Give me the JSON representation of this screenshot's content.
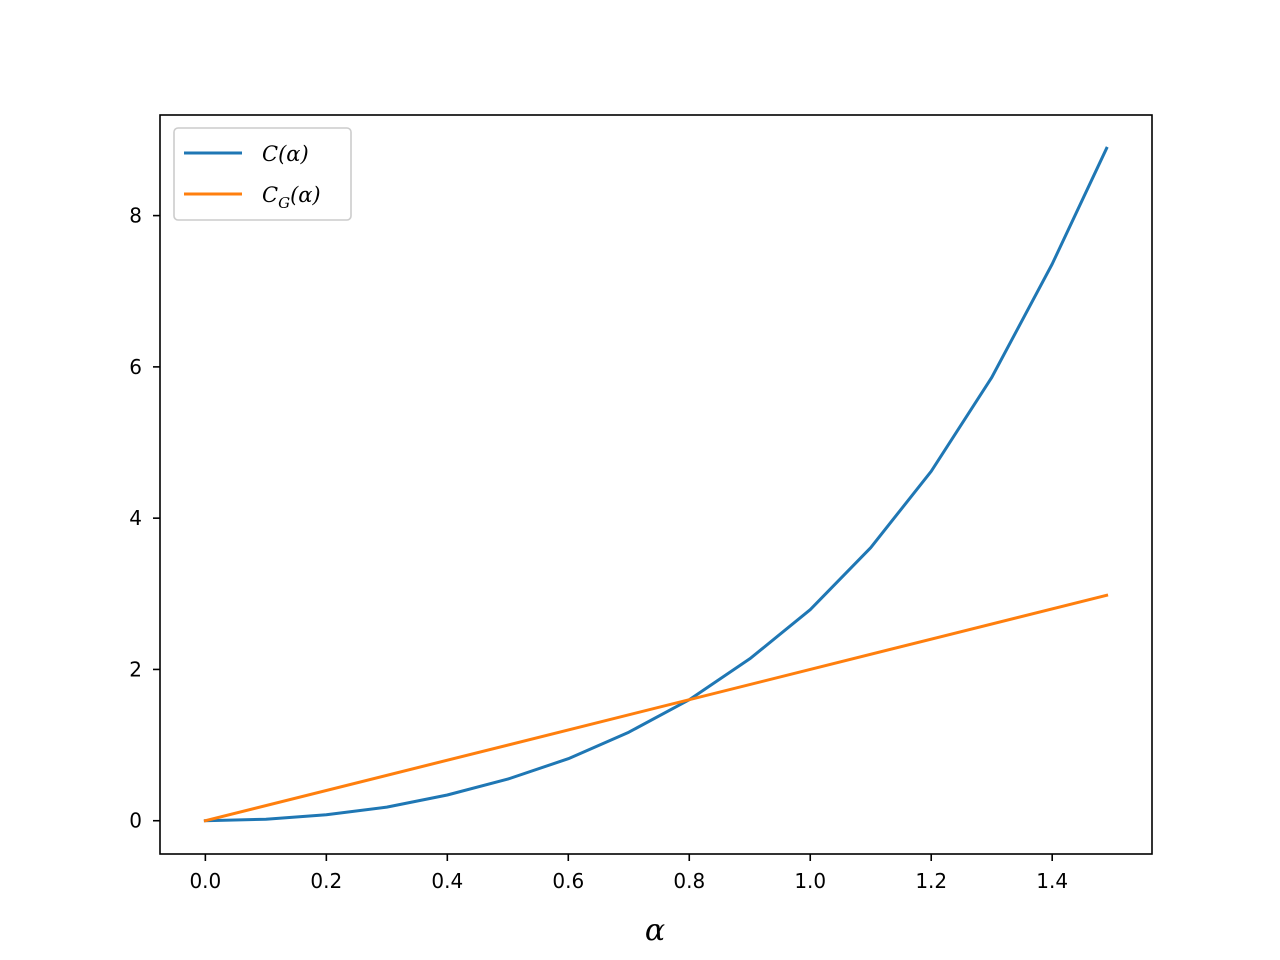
{
  "chart_data": {
    "type": "line",
    "xlabel": "α",
    "ylabel": "",
    "title": "",
    "xlim": [
      -0.075,
      1.565
    ],
    "ylim": [
      -0.44,
      9.33
    ],
    "xticks": [
      0.0,
      0.2,
      0.4,
      0.6,
      0.8,
      1.0,
      1.2,
      1.4
    ],
    "xtick_labels": [
      "0.0",
      "0.2",
      "0.4",
      "0.6",
      "0.8",
      "1.0",
      "1.2",
      "1.4"
    ],
    "yticks": [
      0,
      2,
      4,
      6,
      8
    ],
    "ytick_labels": [
      "0",
      "2",
      "4",
      "6",
      "8"
    ],
    "grid": false,
    "legend_position": "top-left",
    "series": [
      {
        "name": "C(α)",
        "legend_main": "C",
        "legend_sub": "",
        "legend_args": "(α)",
        "color": "#1f77b4",
        "x": [
          0.0,
          0.1,
          0.2,
          0.3,
          0.4,
          0.5,
          0.6,
          0.7,
          0.8,
          0.9,
          1.0,
          1.1,
          1.2,
          1.3,
          1.4,
          1.49
        ],
        "y": [
          0.0,
          0.02,
          0.08,
          0.18,
          0.34,
          0.55,
          0.82,
          1.17,
          1.6,
          2.14,
          2.79,
          3.61,
          4.62,
          5.86,
          7.36,
          8.89
        ]
      },
      {
        "name": "C_G(α)",
        "legend_main": "C",
        "legend_sub": "G",
        "legend_args": "(α)",
        "color": "#ff7f0e",
        "x": [
          0.0,
          1.49
        ],
        "y": [
          0.0,
          2.98
        ]
      }
    ]
  }
}
